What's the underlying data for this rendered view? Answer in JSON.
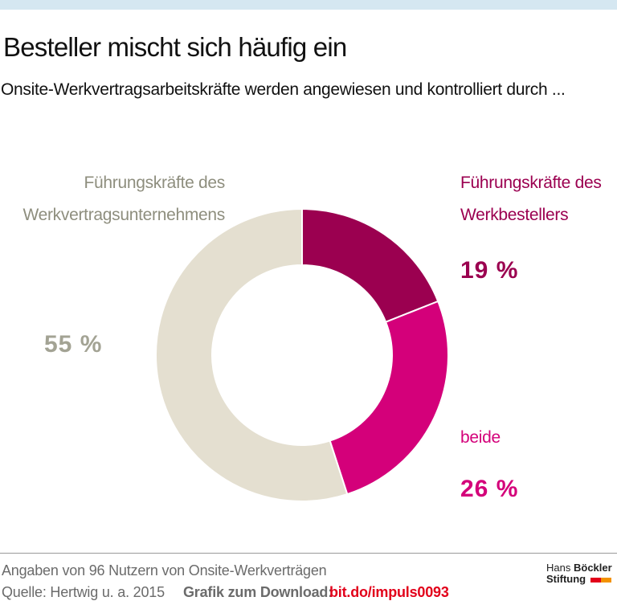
{
  "chart_data": {
    "type": "donut",
    "title": "Besteller mischt sich häufig ein",
    "subtitle": "Onsite-Werkvertragsarbeitskräfte werden angewiesen und kontrolliert durch ...",
    "categories": [
      "Führungskräfte des Werkbestellers",
      "beide",
      "Führungskräfte des Werkvertragsunternehmens"
    ],
    "values": [
      19,
      26,
      55
    ],
    "value_labels": [
      "19 %",
      "26 %",
      "55 %"
    ],
    "colors": [
      "#9b0050",
      "#d4007a",
      "#e4dfd0"
    ],
    "label_colors": [
      "#9b0050",
      "#d4007a",
      "#8e8e7e"
    ],
    "value_label_colors": [
      "#9b0050",
      "#d4007a",
      "#a3a394"
    ]
  },
  "footer": {
    "note": "Angaben von 96 Nutzern von Onsite-Werkverträgen",
    "source": "Quelle: Hertwig u. a. 2015",
    "download": "Grafik zum Download:",
    "link": "bit.do/impuls0093"
  },
  "logo": {
    "hans": "Hans",
    "boeckler": "Böckler",
    "stiftung": "Stiftung"
  }
}
